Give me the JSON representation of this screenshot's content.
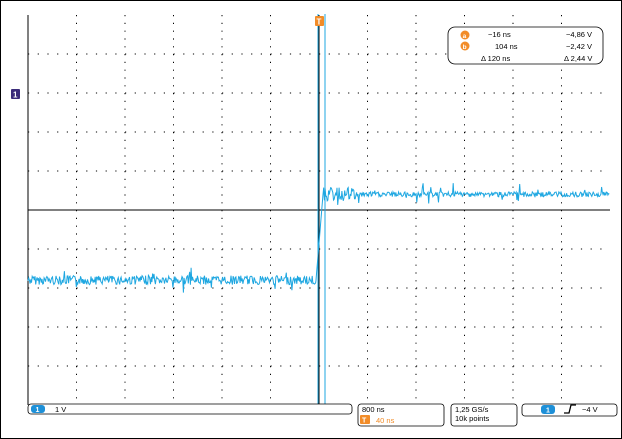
{
  "trigger_marker": {
    "label": "T",
    "color": "#f28c28"
  },
  "channel_marker": {
    "label": "1",
    "color": "#3b2c7a"
  },
  "cursors": {
    "a": {
      "label": "a",
      "time": "−16 ns",
      "voltage": "−4,86 V"
    },
    "b": {
      "label": "b",
      "time": "104  ns",
      "voltage": "−2,42 V"
    },
    "delta": {
      "time": "Δ 120  ns",
      "voltage": "Δ 2,44 V"
    },
    "color": "#f28c28"
  },
  "status_bar": {
    "channel_label": "1",
    "channel_scale": "1 V",
    "timebase": "800 ns",
    "trigger_label": "T",
    "trigger_offset": "40 ns",
    "sample_rate": "1,25 GS/s",
    "record_length": "10k points",
    "trigger_channel": "1",
    "trigger_level": "−4 V"
  },
  "colors": {
    "waveform": "#1ea7e1",
    "cursor_line": "#1ea7e1",
    "channel_badge": "#1e90d8",
    "trigger": "#f28c28",
    "grid": "#000000"
  },
  "waveform": {
    "low_level_div": 1.8,
    "high_level_div": -0.4,
    "edge_time_div": 7.4
  }
}
